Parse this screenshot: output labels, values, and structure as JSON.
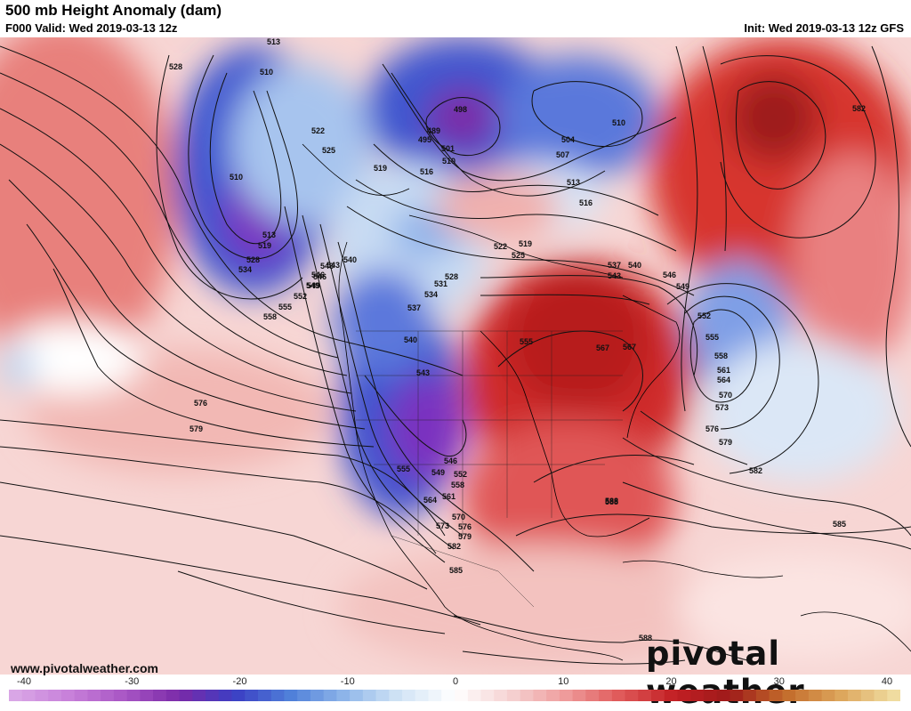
{
  "header": {
    "title": "500 mb Height Anomaly (dam)",
    "valid": "F000 Valid: Wed 2019-03-13 12z",
    "init": "Init: Wed 2019-03-13 12z GFS"
  },
  "footer": {
    "website": "www.pivotalweather.com",
    "logo": "pivotal weather"
  },
  "colorbar": {
    "ticks": [
      "-40",
      "-30",
      "-20",
      "-10",
      "0",
      "10",
      "20",
      "30",
      "40"
    ],
    "colors": [
      "#d9a6e6",
      "#c77fd9",
      "#a855c4",
      "#7a2aa8",
      "#3b3fc4",
      "#4f7fd9",
      "#8fb6ea",
      "#d2e4f5",
      "#ffffff",
      "#f5d3d3",
      "#ef9d9d",
      "#e05a5a",
      "#c21f24",
      "#9e1a1a",
      "#c26a2a",
      "#dca45a",
      "#f0dca0"
    ]
  },
  "contour_labels": [
    "513",
    "528",
    "510",
    "522",
    "525",
    "510",
    "513",
    "519",
    "528",
    "534",
    "546",
    "549",
    "552",
    "555",
    "558",
    "540",
    "543",
    "519",
    "516",
    "510",
    "498",
    "489",
    "495",
    "501",
    "504",
    "507",
    "510",
    "513",
    "516",
    "519",
    "522",
    "525",
    "531",
    "528",
    "534",
    "537",
    "540",
    "543",
    "546",
    "549",
    "552",
    "555",
    "558",
    "561",
    "564",
    "570",
    "573",
    "576",
    "579",
    "582",
    "585",
    "588",
    "537",
    "540",
    "543",
    "546",
    "549",
    "567",
    "555",
    "543",
    "546",
    "549",
    "552",
    "555",
    "558",
    "561",
    "564",
    "567",
    "570",
    "573",
    "576",
    "579",
    "582",
    "585",
    "588",
    "588",
    "576",
    "579",
    "582"
  ]
}
